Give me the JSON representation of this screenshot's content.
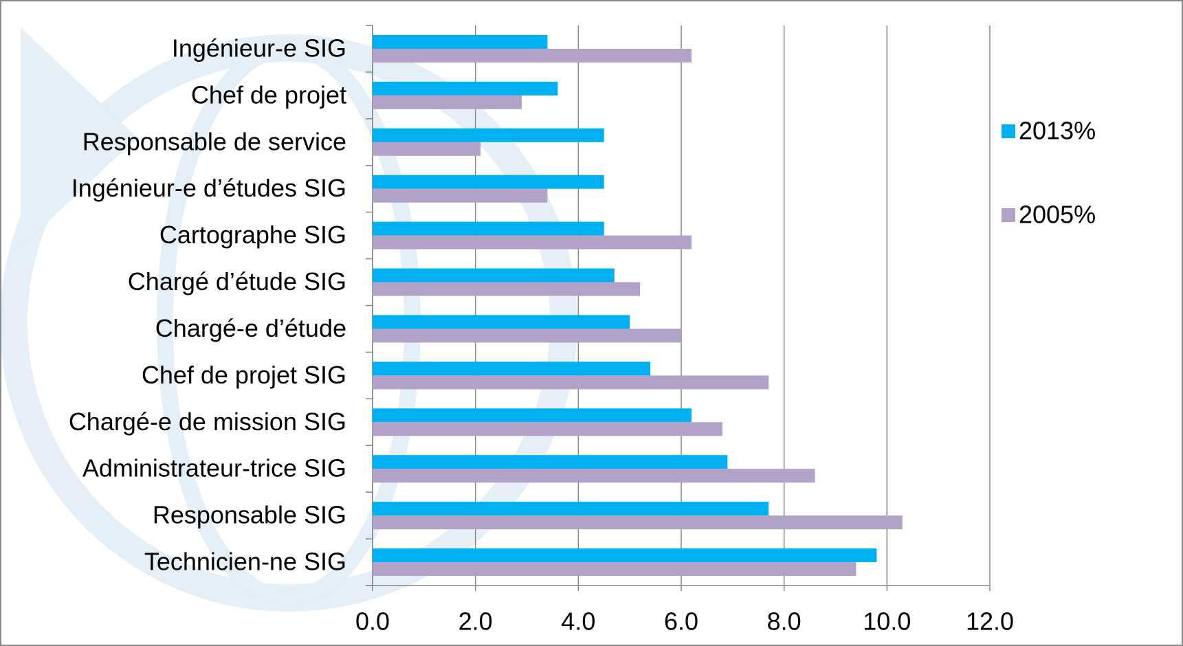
{
  "chart_data": {
    "type": "bar",
    "orientation": "horizontal",
    "categories": [
      "Ingénieur-e SIG",
      "Chef de projet",
      "Responsable de service",
      "Ingénieur-e d’études SIG",
      "Cartographe SIG",
      "Chargé d’étude SIG",
      "Chargé-e d’étude",
      "Chef de projet SIG",
      "Chargé-e de mission SIG",
      "Administrateur-trice SIG",
      "Responsable SIG",
      "Technicien-ne SIG"
    ],
    "series": [
      {
        "name": "2013%",
        "color": "#00b0f0",
        "values": [
          3.4,
          3.6,
          4.5,
          4.5,
          4.5,
          4.7,
          5.0,
          5.4,
          6.2,
          6.9,
          7.7,
          9.8
        ]
      },
      {
        "name": "2005%",
        "color": "#b3a2c7",
        "values": [
          6.2,
          2.9,
          2.1,
          3.4,
          6.2,
          5.2,
          6.0,
          7.7,
          6.8,
          8.6,
          10.3,
          9.4
        ]
      }
    ],
    "xlim": [
      0,
      12
    ],
    "xticks": [
      {
        "value": 0,
        "label": "0.0"
      },
      {
        "value": 2,
        "label": "2.0"
      },
      {
        "value": 4,
        "label": "4.0"
      },
      {
        "value": 6,
        "label": "6.0"
      },
      {
        "value": 8,
        "label": "8.0"
      },
      {
        "value": 10,
        "label": "10.0"
      },
      {
        "value": 12,
        "label": "12.0"
      }
    ],
    "grid": true,
    "legend": "right"
  }
}
